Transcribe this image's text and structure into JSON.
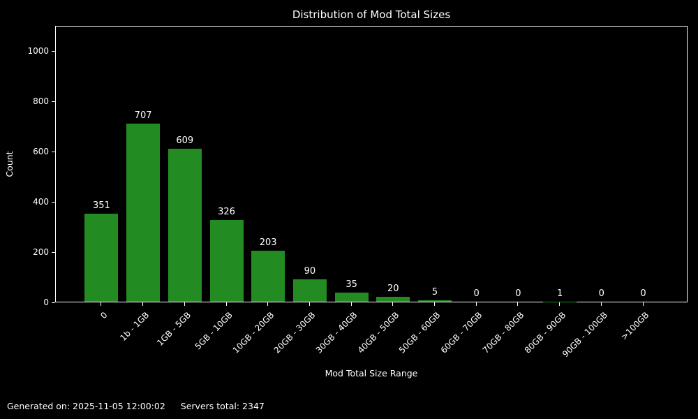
{
  "figure": {
    "background": "#000000",
    "text_color": "#ffffff"
  },
  "chart_data": {
    "type": "bar",
    "title": "Distribution of Mod Total Sizes",
    "xlabel": "Mod Total Size Range",
    "ylabel": "Count",
    "categories": [
      "0",
      "1b - 1GB",
      "1GB - 5GB",
      "5GB - 10GB",
      "10GB - 20GB",
      "20GB - 30GB",
      "30GB - 40GB",
      "40GB - 50GB",
      "50GB - 60GB",
      "60GB - 70GB",
      "70GB - 80GB",
      "80GB - 90GB",
      "90GB - 100GB",
      ">100GB"
    ],
    "values": [
      351,
      707,
      609,
      326,
      203,
      90,
      35,
      20,
      5,
      0,
      0,
      1,
      0,
      0
    ],
    "bar_color": "#228B22",
    "yticks": [
      0,
      200,
      400,
      600,
      800,
      1000
    ],
    "ylim": [
      0,
      1100
    ],
    "grid": false,
    "legend_position": "none",
    "value_labels": true,
    "x_tick_rotation": 45
  },
  "footer": {
    "generated_text": "Generated on: 2025-11-05 12:00:02",
    "servers_total_text": "Servers total: 2347"
  }
}
